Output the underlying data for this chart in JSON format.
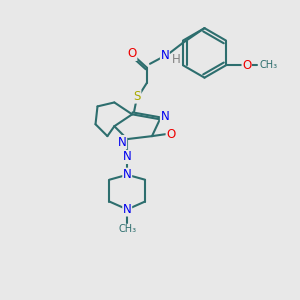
{
  "bg_color": "#e8e8e8",
  "bond_color": "#2d6e6e",
  "bond_width": 1.5,
  "atom_colors": {
    "N": "#0000ee",
    "O": "#ee0000",
    "S": "#aaaa00",
    "H": "#808080",
    "C": "#2d6e6e"
  },
  "font_size": 8.5,
  "figsize": [
    3.0,
    3.0
  ],
  "dpi": 100
}
